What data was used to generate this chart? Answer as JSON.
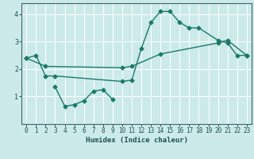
{
  "xlabel": "Humidex (Indice chaleur)",
  "bg_color": "#cceaea",
  "grid_color": "#ffffff",
  "line_color": "#1a7a6a",
  "xlim": [
    -0.5,
    23.5
  ],
  "ylim": [
    0,
    4.4
  ],
  "xticks": [
    0,
    1,
    2,
    3,
    4,
    5,
    6,
    7,
    8,
    9,
    10,
    11,
    12,
    13,
    14,
    15,
    16,
    17,
    18,
    19,
    20,
    21,
    22,
    23
  ],
  "yticks": [
    1,
    2,
    3,
    4
  ],
  "line1_x": [
    0,
    1,
    2,
    3,
    10,
    11,
    12,
    13,
    14,
    15,
    16,
    17,
    18,
    20,
    21,
    22,
    23
  ],
  "line1_y": [
    2.4,
    2.5,
    1.75,
    1.75,
    1.55,
    1.6,
    2.75,
    3.7,
    4.1,
    4.1,
    3.7,
    3.5,
    3.5,
    3.05,
    2.95,
    2.5,
    2.5
  ],
  "line2_x": [
    0,
    2,
    10,
    11,
    14,
    20,
    21,
    23
  ],
  "line2_y": [
    2.4,
    2.1,
    2.05,
    2.1,
    2.55,
    2.95,
    3.05,
    2.5
  ],
  "line3_x": [
    3,
    4,
    5,
    6,
    7,
    8,
    9
  ],
  "line3_y": [
    1.35,
    0.65,
    0.7,
    0.85,
    1.2,
    1.25,
    0.9
  ],
  "markersize": 2.5,
  "linewidth": 1.0
}
